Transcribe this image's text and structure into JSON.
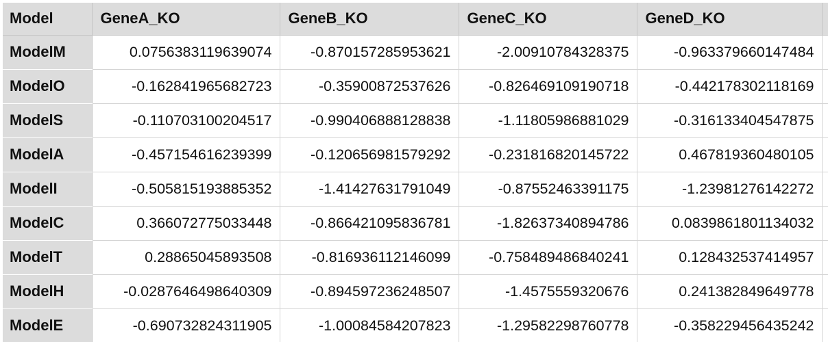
{
  "table": {
    "corner_label": "Model",
    "columns": [
      "GeneA_KO",
      "GeneB_KO",
      "GeneC_KO",
      "GeneD_KO"
    ],
    "rows": [
      {
        "label": "ModelM",
        "values": [
          "0.0756383119639074",
          "-0.870157285953621",
          "-2.00910784328375",
          "-0.963379660147484"
        ]
      },
      {
        "label": "ModelO",
        "values": [
          "-0.162841965682723",
          "-0.35900872537626",
          "-0.826469109190718",
          "-0.442178302118169"
        ]
      },
      {
        "label": "ModelS",
        "values": [
          "-0.110703100204517",
          "-0.990406888128838",
          "-1.11805986881029",
          "-0.316133404547875"
        ]
      },
      {
        "label": "ModelA",
        "values": [
          "-0.457154616239399",
          "-0.120656981579292",
          "-0.231816820145722",
          "0.467819360480105"
        ]
      },
      {
        "label": "ModelI",
        "values": [
          "-0.505815193885352",
          "-1.41427631791049",
          "-0.87552463391175",
          "-1.23981276142272"
        ]
      },
      {
        "label": "ModelC",
        "values": [
          "0.366072775033448",
          "-0.866421095836781",
          "-1.82637340894786",
          "0.0839861801134032"
        ]
      },
      {
        "label": "ModelT",
        "values": [
          "0.28865045893508",
          "-0.816936112146099",
          "-0.758489486840241",
          "0.128432537414957"
        ]
      },
      {
        "label": "ModelH",
        "values": [
          "-0.0287646498640309",
          "-0.894597236248507",
          "-1.4575559320676",
          "0.241382849649778"
        ]
      },
      {
        "label": "ModelE",
        "values": [
          "-0.690732824311905",
          "-1.00084584207823",
          "-1.29582298760778",
          "-0.358229456435242"
        ]
      }
    ]
  },
  "colors": {
    "header_bg": "#dcdcdc",
    "grid_line": "#d4d4d4",
    "text": "#111111"
  }
}
